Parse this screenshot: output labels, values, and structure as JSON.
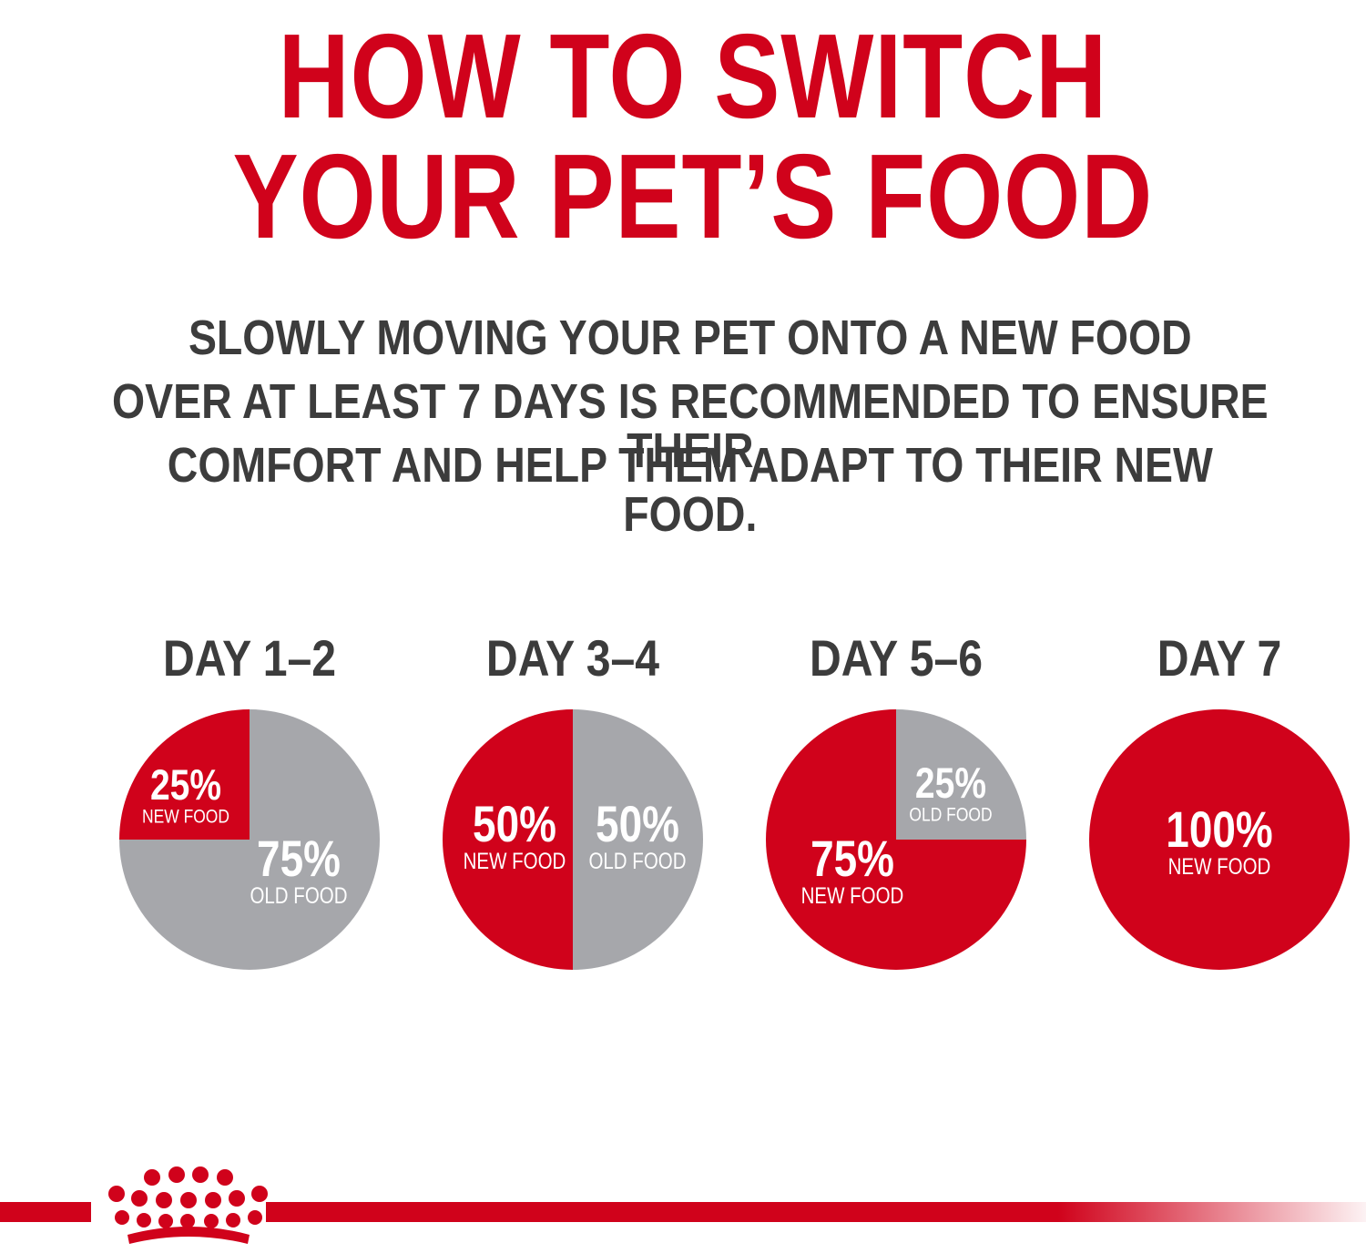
{
  "title": {
    "line1": "HOW TO SWITCH",
    "line2": "YOUR PET’S FOOD"
  },
  "subtitle": {
    "line1": "SLOWLY MOVING YOUR PET ONTO A NEW FOOD",
    "line2": "OVER AT LEAST 7 DAYS IS RECOMMENDED TO ENSURE THEIR",
    "line3": "COMFORT AND HELP THEM ADAPT TO THEIR NEW FOOD."
  },
  "colors": {
    "new_food": "#d0021b",
    "old_food": "#a6a7ab",
    "title": "#d0021b",
    "text": "#3c3c3c"
  },
  "logo": {
    "icon": "crown-icon"
  },
  "chart_data": {
    "type": "pie",
    "charts": [
      {
        "day": "DAY 1–2",
        "slices": [
          {
            "label": "NEW FOOD",
            "value": 25,
            "value_text": "25%",
            "kind": "new"
          },
          {
            "label": "OLD FOOD",
            "value": 75,
            "value_text": "75%",
            "kind": "old"
          }
        ]
      },
      {
        "day": "DAY 3–4",
        "slices": [
          {
            "label": "NEW FOOD",
            "value": 50,
            "value_text": "50%",
            "kind": "new"
          },
          {
            "label": "OLD FOOD",
            "value": 50,
            "value_text": "50%",
            "kind": "old"
          }
        ]
      },
      {
        "day": "DAY 5–6",
        "slices": [
          {
            "label": "NEW FOOD",
            "value": 75,
            "value_text": "75%",
            "kind": "new"
          },
          {
            "label": "OLD FOOD",
            "value": 25,
            "value_text": "25%",
            "kind": "old"
          }
        ]
      },
      {
        "day": "DAY 7",
        "slices": [
          {
            "label": "NEW FOOD",
            "value": 100,
            "value_text": "100%",
            "kind": "new"
          }
        ]
      }
    ]
  }
}
